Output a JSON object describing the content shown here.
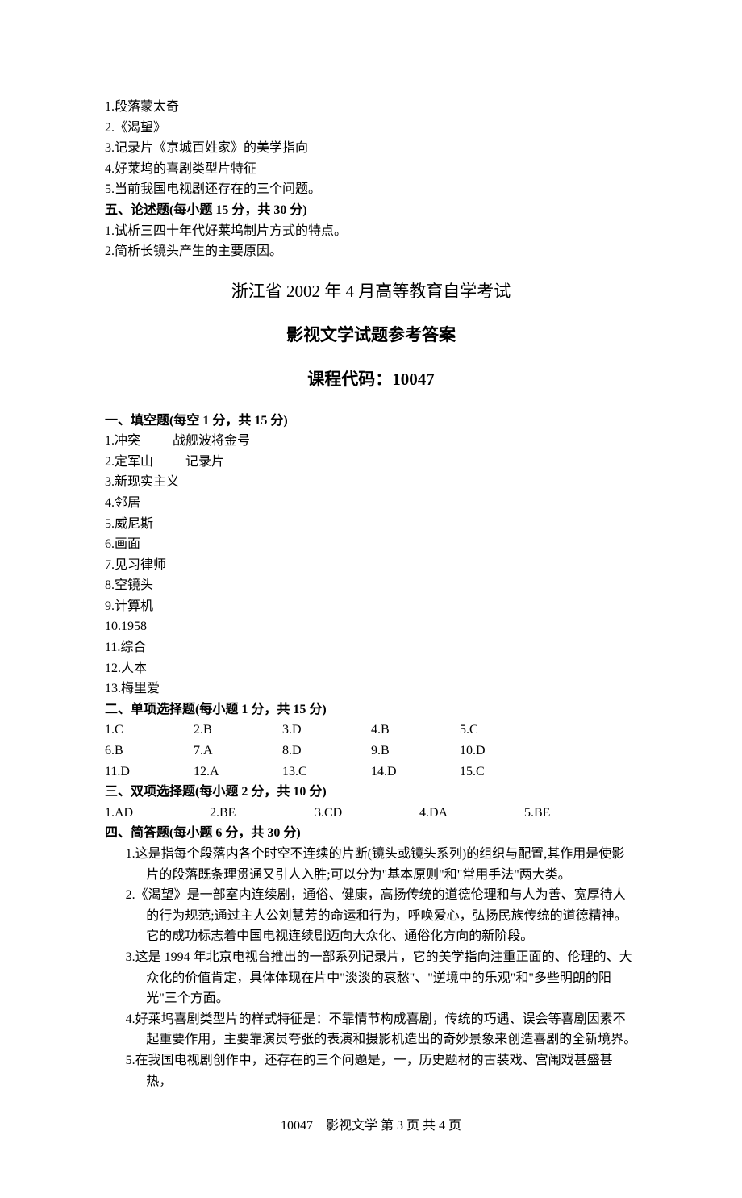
{
  "intro": {
    "items": [
      "1.段落蒙太奇",
      "2.《渴望》",
      "3.记录片《京城百姓家》的美学指向",
      "4.好莱坞的喜剧类型片特征",
      "5.当前我国电视剧还存在的三个问题。"
    ]
  },
  "section5": {
    "heading": "五、论述题(每小题 15 分，共 30 分)",
    "items": [
      "1.试析三四十年代好莱坞制片方式的特点。",
      "2.简析长镜头产生的主要原因。"
    ]
  },
  "title": {
    "line1": "浙江省 2002 年 4 月高等教育自学考试",
    "line2": "影视文学试题参考答案",
    "line3": "课程代码：10047"
  },
  "fillBlank": {
    "heading": "一、填空题(每空 1 分，共 15 分)",
    "items": [
      {
        "num": "1.",
        "a": "冲突",
        "b": "战舰波将金号"
      },
      {
        "num": "2.",
        "a": "定军山",
        "b": "记录片"
      },
      {
        "num": "3.",
        "a": "新现实主义"
      },
      {
        "num": "4.",
        "a": "邻居"
      },
      {
        "num": "5.",
        "a": "威尼斯"
      },
      {
        "num": "6.",
        "a": "画面"
      },
      {
        "num": "7.",
        "a": "见习律师"
      },
      {
        "num": "8.",
        "a": "空镜头"
      },
      {
        "num": "9.",
        "a": "计算机"
      },
      {
        "num": "10.",
        "a": "1958"
      },
      {
        "num": "11.",
        "a": "综合"
      },
      {
        "num": "12.",
        "a": "人本"
      },
      {
        "num": "13.",
        "a": "梅里爱"
      }
    ]
  },
  "singleChoice": {
    "heading": "二、单项选择题(每小题 1 分，共 15 分)",
    "rows": [
      [
        "1.C",
        "2.B",
        "3.D",
        "4.B",
        "5.C"
      ],
      [
        "6.B",
        "7.A",
        "8.D",
        "9.B",
        "10.D"
      ],
      [
        "11.D",
        "12.A",
        "13.C",
        "14.D",
        "15.C"
      ]
    ]
  },
  "doubleChoice": {
    "heading": "三、双项选择题(每小题 2 分，共 10 分)",
    "rows": [
      [
        "1.AD",
        "2.BE",
        "3.CD",
        "4.DA",
        "5.BE"
      ]
    ]
  },
  "shortAnswer": {
    "heading": "四、简答题(每小题 6 分，共 30 分)",
    "items": [
      "1.这是指每个段落内各个时空不连续的片断(镜头或镜头系列)的组织与配置,其作用是使影片的段落既条理贯通又引人入胜;可以分为\"基本原则\"和\"常用手法\"两大类。",
      "2.《渴望》是一部室内连续剧，通俗、健康，高扬传统的道德伦理和与人为善、宽厚待人的行为规范;通过主人公刘慧芳的命运和行为，呼唤爱心，弘扬民族传统的道德精神。它的成功标志着中国电视连续剧迈向大众化、通俗化方向的新阶段。",
      "3.这是 1994 年北京电视台推出的一部系列记录片，它的美学指向注重正面的、伦理的、大众化的价值肯定，具体体现在片中\"淡淡的哀愁\"、\"逆境中的乐观\"和\"多些明朗的阳光\"三个方面。",
      "4.好莱坞喜剧类型片的样式特征是：不靠情节构成喜剧，传统的巧遇、误会等喜剧因素不起重要作用，主要靠演员夸张的表演和摄影机造出的奇妙景象来创造喜剧的全新境界。",
      "5.在我国电视剧创作中，还存在的三个问题是，一，历史题材的古装戏、宫闱戏甚盛甚热，"
    ]
  },
  "footer": "10047　影视文学 第 3 页 共 4 页"
}
